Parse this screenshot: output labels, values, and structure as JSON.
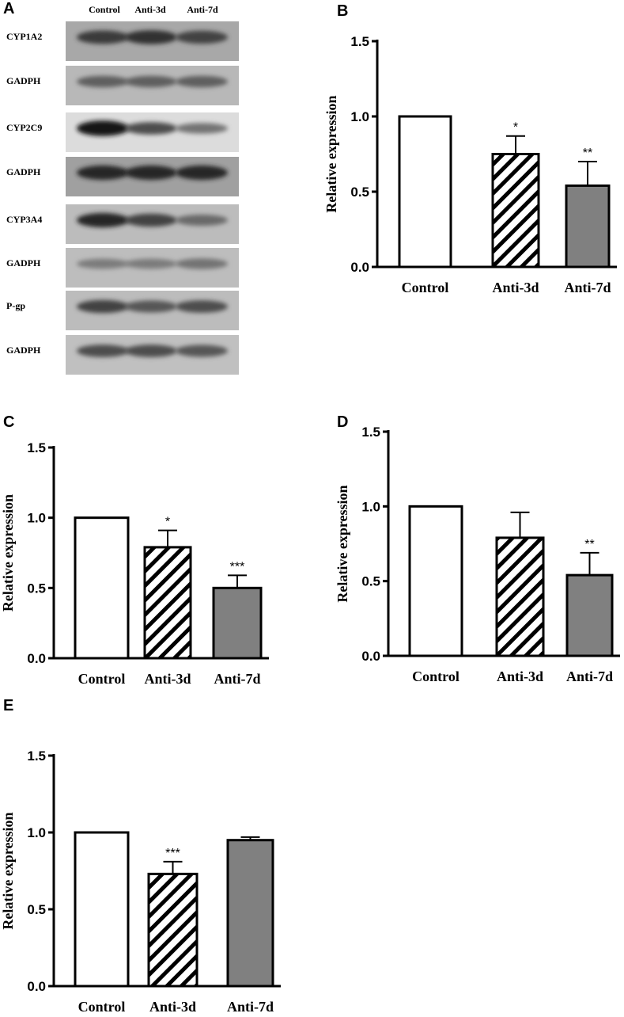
{
  "panel_letters": [
    "A",
    "B",
    "C",
    "D",
    "E"
  ],
  "blot": {
    "columns": [
      "Control",
      "Anti-3d",
      "Anti-7d"
    ],
    "rows": [
      {
        "label": "CYP1A2",
        "intensity": [
          0.75,
          0.8,
          0.7
        ],
        "background": "#a8a8a8"
      },
      {
        "label": "GADPH",
        "intensity": [
          0.55,
          0.55,
          0.55
        ],
        "background": "#b8b8b8"
      },
      {
        "label": "CYP2C9",
        "intensity": [
          0.95,
          0.65,
          0.45
        ],
        "background": "#dcdcdc"
      },
      {
        "label": "GADPH",
        "intensity": [
          0.85,
          0.85,
          0.85
        ],
        "background": "#a0a0a0"
      },
      {
        "label": "CYP3A4",
        "intensity": [
          0.85,
          0.7,
          0.5
        ],
        "background": "#bcbcbc"
      },
      {
        "label": "GADPH",
        "intensity": [
          0.4,
          0.4,
          0.45
        ],
        "background": "#bdbdbd"
      },
      {
        "label": "P-gp",
        "intensity": [
          0.7,
          0.6,
          0.65
        ],
        "background": "#bcbcbc"
      },
      {
        "label": "GADPH",
        "intensity": [
          0.65,
          0.65,
          0.6
        ],
        "background": "#c0c0c0"
      }
    ]
  },
  "chart_data": [
    {
      "panel": "B",
      "type": "bar",
      "categories": [
        "Control",
        "Anti-3d",
        "Anti-7d"
      ],
      "values": [
        1.0,
        0.75,
        0.54
      ],
      "errors": [
        0,
        0.12,
        0.16
      ],
      "significance": [
        "",
        "*",
        "**"
      ],
      "fills": [
        "white",
        "hatch",
        "gray"
      ],
      "ylabel": "Relative expression",
      "ylim": [
        0,
        1.5
      ],
      "yticks": [
        "0.0",
        "0.5",
        "1.0",
        "1.5"
      ]
    },
    {
      "panel": "C",
      "type": "bar",
      "categories": [
        "Control",
        "Anti-3d",
        "Anti-7d"
      ],
      "values": [
        1.0,
        0.79,
        0.5
      ],
      "errors": [
        0,
        0.12,
        0.09
      ],
      "significance": [
        "",
        "*",
        "***"
      ],
      "fills": [
        "white",
        "hatch",
        "gray"
      ],
      "ylabel": "Relative expression",
      "ylim": [
        0,
        1.5
      ],
      "yticks": [
        "0.0",
        "0.5",
        "1.0",
        "1.5"
      ]
    },
    {
      "panel": "D",
      "type": "bar",
      "categories": [
        "Control",
        "Anti-3d",
        "Anti-7d"
      ],
      "values": [
        1.0,
        0.79,
        0.54
      ],
      "errors": [
        0,
        0.17,
        0.15
      ],
      "significance": [
        "",
        "",
        "**"
      ],
      "fills": [
        "white",
        "hatch",
        "gray"
      ],
      "ylabel": "Relative expression",
      "ylim": [
        0,
        1.5
      ],
      "yticks": [
        "0.0",
        "0.5",
        "1.0",
        "1.5"
      ]
    },
    {
      "panel": "E",
      "type": "bar",
      "categories": [
        "Control",
        "Anti-3d",
        "Anti-7d"
      ],
      "values": [
        1.0,
        0.73,
        0.95
      ],
      "errors": [
        0,
        0.08,
        0.02
      ],
      "significance": [
        "",
        "***",
        ""
      ],
      "fills": [
        "white",
        "hatch",
        "gray"
      ],
      "ylabel": "Relative expression",
      "ylim": [
        0,
        1.5
      ],
      "yticks": [
        "0.0",
        "0.5",
        "1.0",
        "1.5"
      ]
    }
  ],
  "colors": {
    "gray_bar": "#808080",
    "axis": "#000000",
    "hatch": "#000000"
  }
}
